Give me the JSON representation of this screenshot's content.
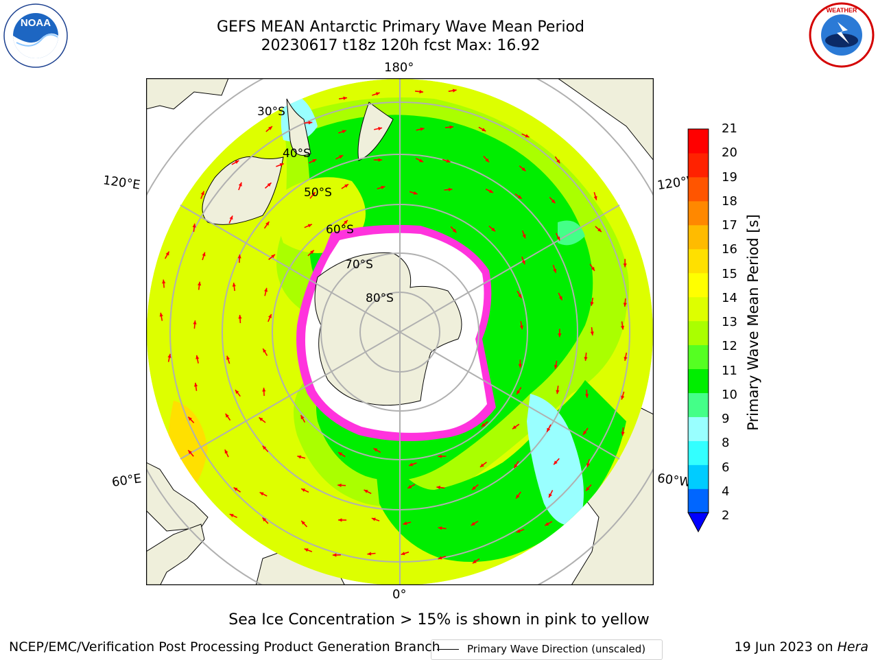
{
  "header": {
    "title_line1": "GEFS MEAN Antarctic Primary Wave Mean Period",
    "title_line2": "20230617 t18z 120h fcst   Max: 16.92"
  },
  "logos": {
    "left": "NOAA",
    "right": "NATIONAL WEATHER SERVICE"
  },
  "map": {
    "projection": "south polar stereographic",
    "lon_labels": {
      "top": "180°",
      "bottom": "0°",
      "upper_left": "120°E",
      "upper_right": "120°W",
      "lower_left": "60°E",
      "lower_right": "60°W"
    },
    "lat_labels": [
      "30°S",
      "40°S",
      "50°S",
      "60°S",
      "70°S",
      "80°S"
    ],
    "legend": "Primary Wave Direction (unscaled)",
    "colors": {
      "land": "#efefdb",
      "ice": "#ffffff",
      "arrows": "#ff0000",
      "ice_edge": "#ff33dd"
    }
  },
  "colorbar": {
    "label": "Primary Wave Mean Period [s]",
    "ticks": [
      "2",
      "4",
      "6",
      "8",
      "9",
      "10",
      "11",
      "12",
      "13",
      "14",
      "15",
      "16",
      "17",
      "18",
      "19",
      "20",
      "21"
    ],
    "colors": [
      "#0066ff",
      "#00ccff",
      "#33ffff",
      "#99ffff",
      "#44ff88",
      "#00ee00",
      "#55ff22",
      "#aaff00",
      "#ddff00",
      "#ffff00",
      "#ffe000",
      "#ffbb00",
      "#ff8800",
      "#ff5500",
      "#ff2200",
      "#ff0000"
    ],
    "extend_color": "#0000ff"
  },
  "note": "Sea Ice Concentration > 15% is shown in pink to yellow",
  "footer": {
    "left": "NCEP/EMC/Verification Post Processing Product Generation Branch",
    "right_date": "19 Jun 2023 on",
    "right_machine": "Hera"
  }
}
